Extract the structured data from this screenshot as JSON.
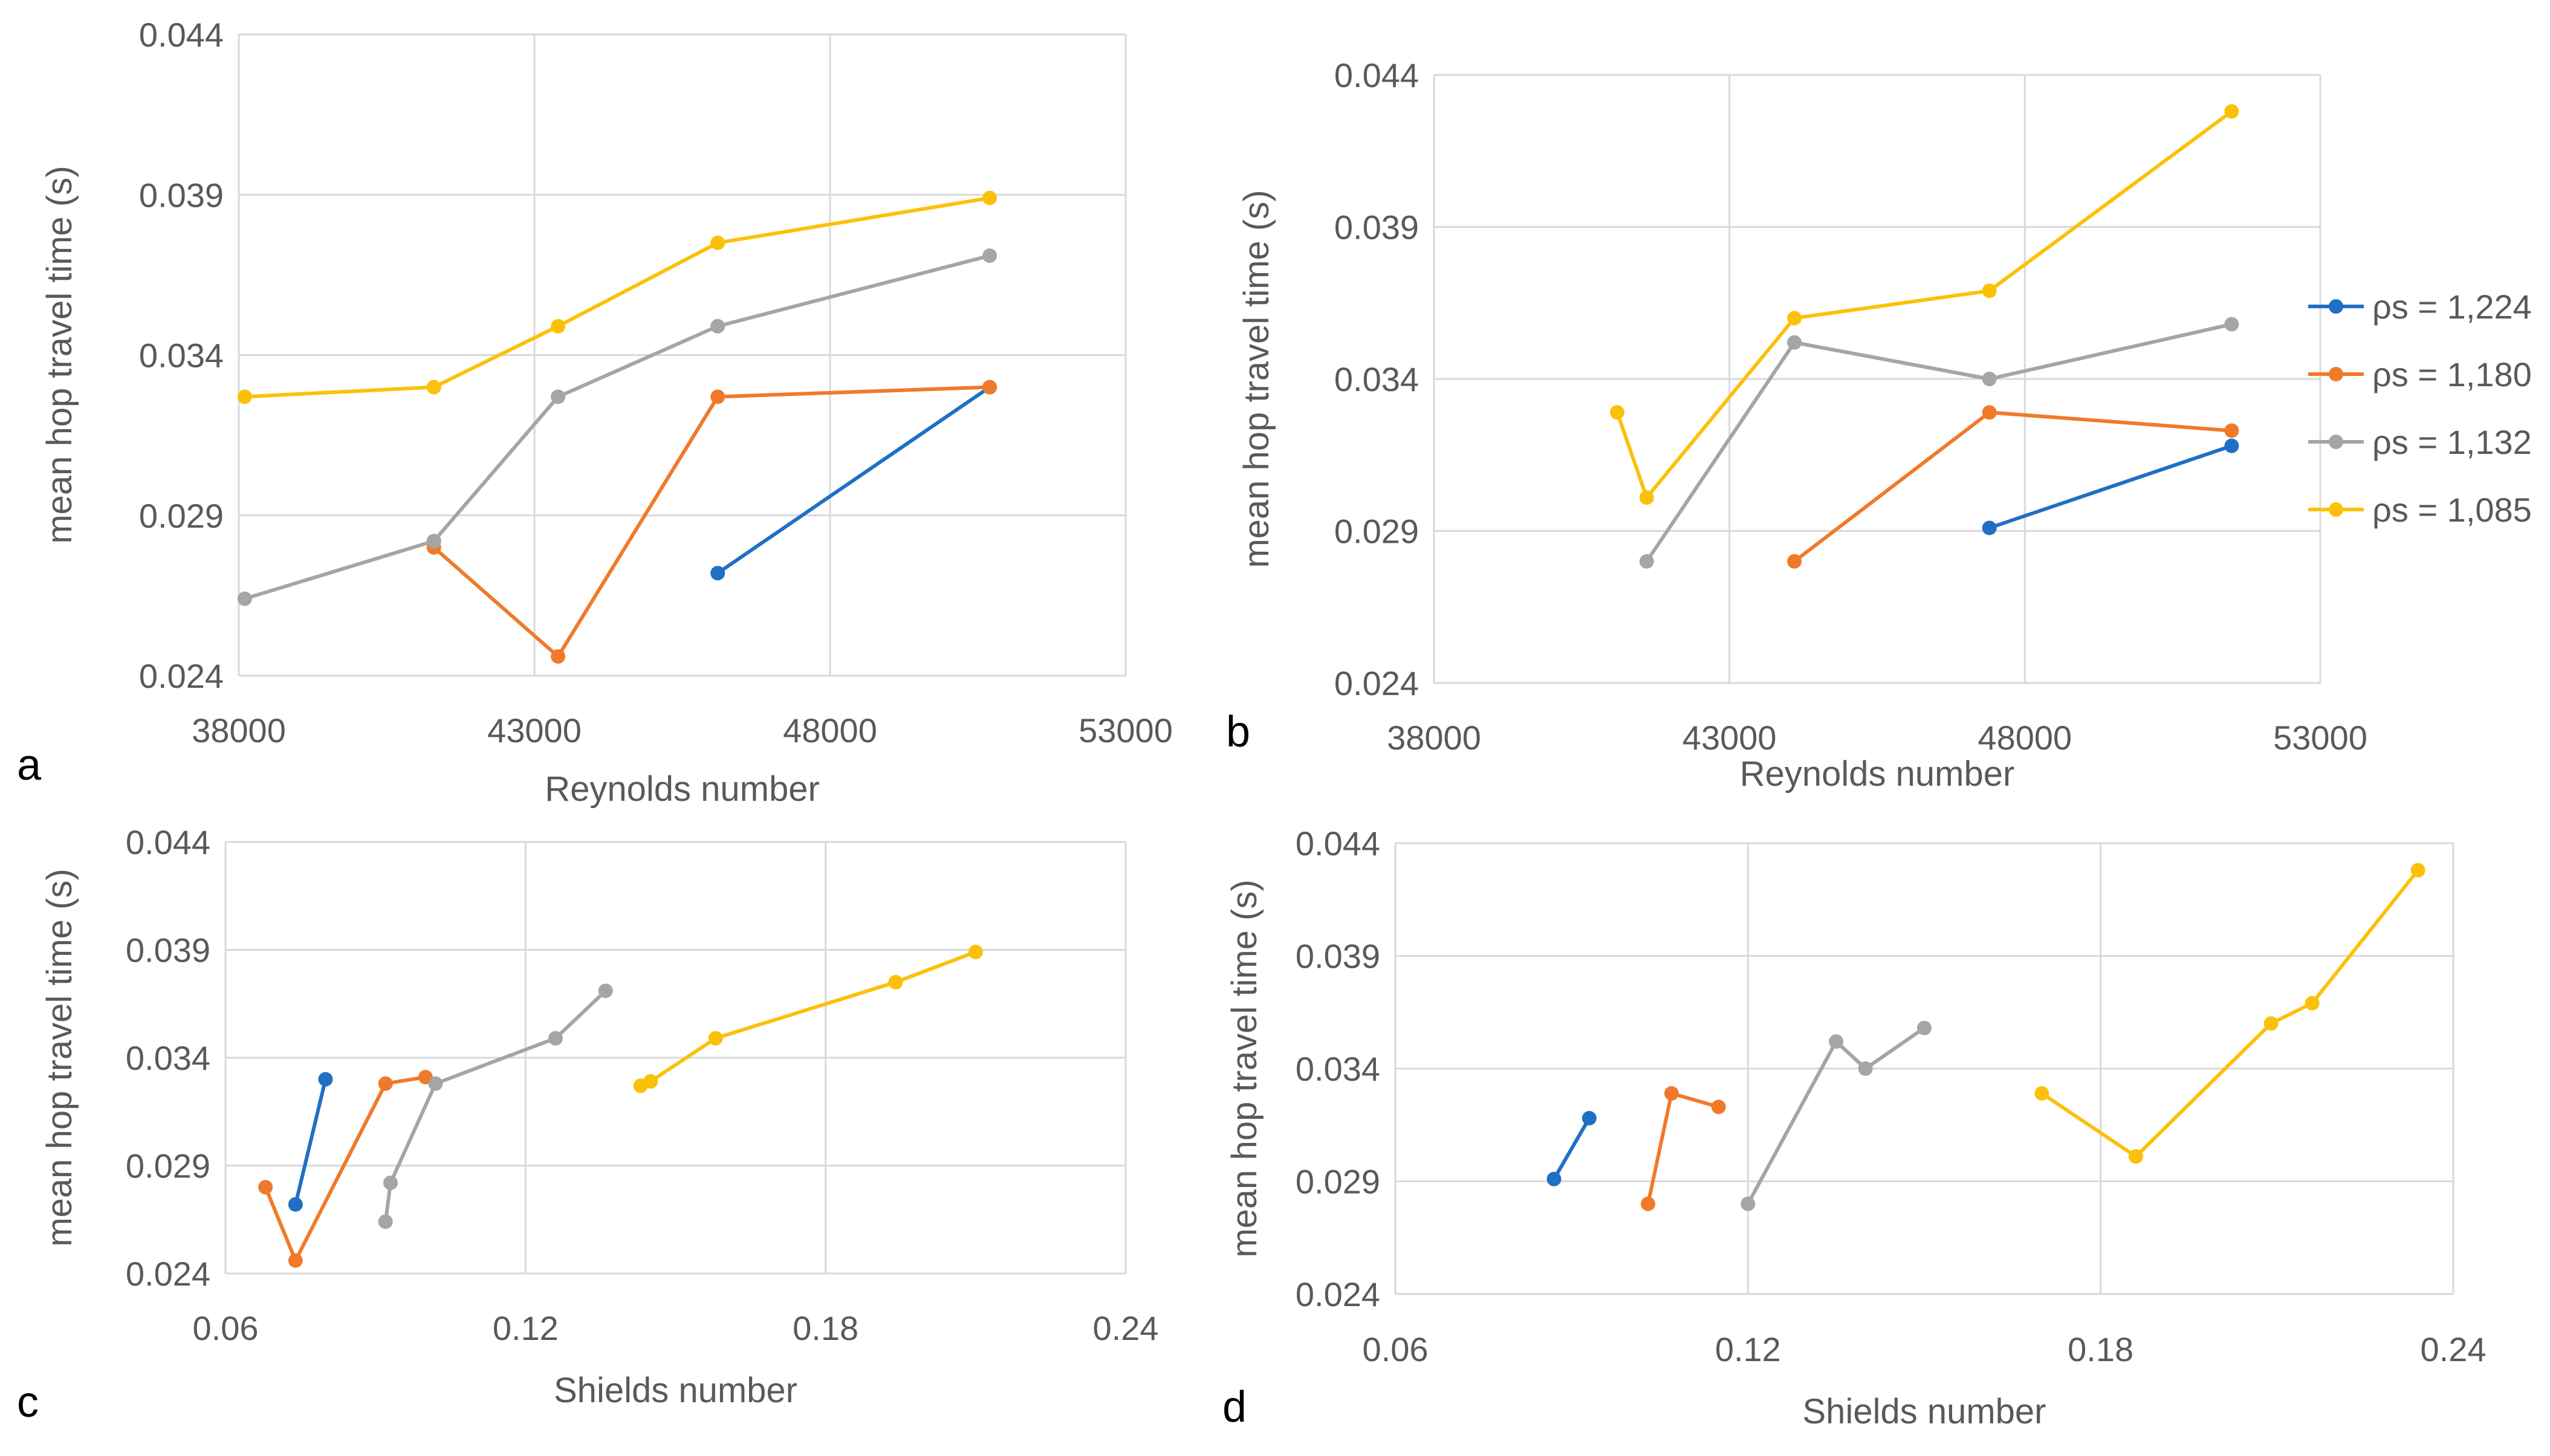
{
  "chart_data": [
    {
      "panel": "a",
      "type": "line",
      "xlabel": "Reynolds number",
      "ylabel": "mean hop travel time  (s)",
      "xlim": [
        38000,
        53000
      ],
      "ylim": [
        0.024,
        0.044
      ],
      "xticks": [
        "38000",
        "43000",
        "48000",
        "53000"
      ],
      "yticks": [
        "0.024",
        "0.029",
        "0.034",
        "0.039",
        "0.044"
      ],
      "grid": true,
      "series": [
        {
          "name": "ρs = 1,224",
          "color": "#1f6fc5",
          "points": [
            [
              46100,
              0.0272
            ],
            [
              50700,
              0.033
            ]
          ]
        },
        {
          "name": "ρs = 1,180",
          "color": "#f07a2a",
          "points": [
            [
              41300,
              0.028
            ],
            [
              43400,
              0.0246
            ],
            [
              46100,
              0.0327
            ],
            [
              50700,
              0.033
            ]
          ]
        },
        {
          "name": "ρs = 1,132",
          "color": "#a5a5a5",
          "points": [
            [
              38100,
              0.0264
            ],
            [
              41300,
              0.0282
            ],
            [
              43400,
              0.0327
            ],
            [
              46100,
              0.0349
            ],
            [
              50700,
              0.0371
            ]
          ]
        },
        {
          "name": "ρs = 1,085",
          "color": "#fbc10a",
          "points": [
            [
              38100,
              0.0327
            ],
            [
              41300,
              0.033
            ],
            [
              43400,
              0.0349
            ],
            [
              46100,
              0.0375
            ],
            [
              50700,
              0.0389
            ]
          ]
        }
      ]
    },
    {
      "panel": "b",
      "type": "line",
      "xlabel": "Reynolds number",
      "ylabel": "mean hop travel time  (s)",
      "xlim": [
        38000,
        53000
      ],
      "ylim": [
        0.024,
        0.044
      ],
      "xticks": [
        "38000",
        "43000",
        "48000",
        "53000"
      ],
      "yticks": [
        "0.024",
        "0.029",
        "0.034",
        "0.039",
        "0.044"
      ],
      "grid": true,
      "legend": "right",
      "series": [
        {
          "name": "ρs = 1,224",
          "color": "#1f6fc5",
          "points": [
            [
              47400,
              0.0291
            ],
            [
              51500,
              0.0318
            ]
          ]
        },
        {
          "name": "ρs = 1,180",
          "color": "#f07a2a",
          "points": [
            [
              44100,
              0.028
            ],
            [
              47400,
              0.0329
            ],
            [
              51500,
              0.0323
            ]
          ]
        },
        {
          "name": "ρs = 1,132",
          "color": "#a5a5a5",
          "points": [
            [
              41600,
              0.028
            ],
            [
              44100,
              0.0352
            ],
            [
              47400,
              0.034
            ],
            [
              51500,
              0.0358
            ]
          ]
        },
        {
          "name": "ρs = 1,085",
          "color": "#fbc10a",
          "points": [
            [
              41100,
              0.0329
            ],
            [
              41600,
              0.0301
            ],
            [
              44100,
              0.036
            ],
            [
              47400,
              0.0369
            ],
            [
              51500,
              0.0428
            ]
          ]
        }
      ]
    },
    {
      "panel": "c",
      "type": "line",
      "xlabel": "Shields number",
      "ylabel": "mean hop travel time  (s)",
      "xlim": [
        0.06,
        0.24
      ],
      "ylim": [
        0.024,
        0.044
      ],
      "xticks": [
        "0.06",
        "0.12",
        "0.18",
        "0.24"
      ],
      "yticks": [
        "0.024",
        "0.029",
        "0.034",
        "0.039",
        "0.044"
      ],
      "grid": true,
      "series": [
        {
          "name": "ρs = 1,224",
          "color": "#1f6fc5",
          "points": [
            [
              0.074,
              0.0272
            ],
            [
              0.08,
              0.033
            ]
          ]
        },
        {
          "name": "ρs = 1,180",
          "color": "#f07a2a",
          "points": [
            [
              0.068,
              0.028
            ],
            [
              0.074,
              0.0246
            ],
            [
              0.092,
              0.0328
            ],
            [
              0.1,
              0.0331
            ]
          ]
        },
        {
          "name": "ρs = 1,132",
          "color": "#a5a5a5",
          "points": [
            [
              0.092,
              0.0264
            ],
            [
              0.093,
              0.0282
            ],
            [
              0.102,
              0.0328
            ],
            [
              0.126,
              0.0349
            ],
            [
              0.136,
              0.0371
            ]
          ]
        },
        {
          "name": "ρs = 1,085",
          "color": "#fbc10a",
          "points": [
            [
              0.143,
              0.0327
            ],
            [
              0.145,
              0.0329
            ],
            [
              0.158,
              0.0349
            ],
            [
              0.194,
              0.0375
            ],
            [
              0.21,
              0.0389
            ]
          ]
        }
      ]
    },
    {
      "panel": "d",
      "type": "line",
      "xlabel": "Shields number",
      "ylabel": "mean hop travel time  (s)",
      "xlim": [
        0.06,
        0.24
      ],
      "ylim": [
        0.024,
        0.044
      ],
      "xticks": [
        "0.06",
        "0.12",
        "0.18",
        "0.24"
      ],
      "yticks": [
        "0.024",
        "0.029",
        "0.034",
        "0.039",
        "0.044"
      ],
      "grid": true,
      "series": [
        {
          "name": "ρs = 1,224",
          "color": "#1f6fc5",
          "points": [
            [
              0.087,
              0.0291
            ],
            [
              0.093,
              0.0318
            ]
          ]
        },
        {
          "name": "ρs = 1,180",
          "color": "#f07a2a",
          "points": [
            [
              0.103,
              0.028
            ],
            [
              0.107,
              0.0329
            ],
            [
              0.115,
              0.0323
            ]
          ]
        },
        {
          "name": "ρs = 1,132",
          "color": "#a5a5a5",
          "points": [
            [
              0.12,
              0.028
            ],
            [
              0.135,
              0.0352
            ],
            [
              0.14,
              0.034
            ],
            [
              0.15,
              0.0358
            ]
          ]
        },
        {
          "name": "ρs = 1,085",
          "color": "#fbc10a",
          "points": [
            [
              0.17,
              0.0329
            ],
            [
              0.186,
              0.0301
            ],
            [
              0.209,
              0.036
            ],
            [
              0.216,
              0.0369
            ],
            [
              0.234,
              0.0428
            ]
          ]
        }
      ]
    }
  ]
}
